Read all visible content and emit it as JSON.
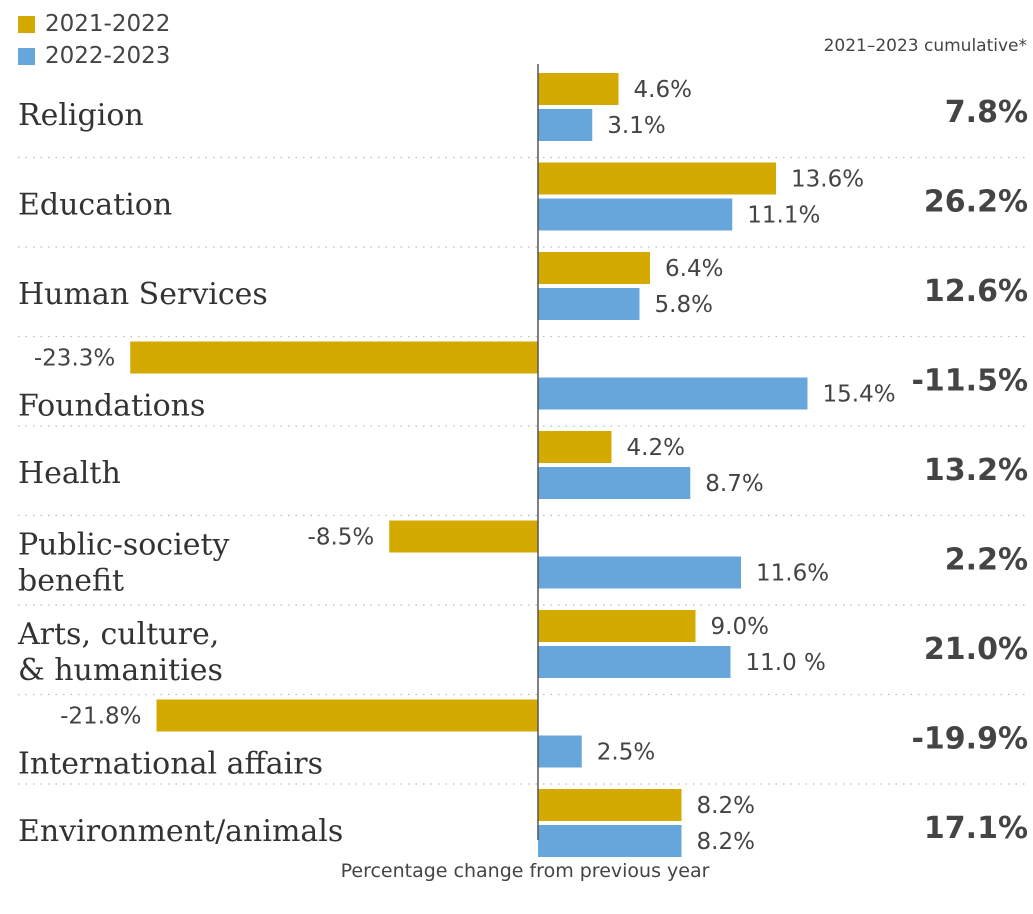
{
  "colors": {
    "series_2021_2022": "#d4a900",
    "series_2022_2023": "#66a6db",
    "text": "#444444",
    "label_text": "#333333",
    "axis": "#555555",
    "divider": "#bbbbbb"
  },
  "legend": [
    {
      "label": "2021-2022"
    },
    {
      "label": "2022-2023"
    }
  ],
  "cumulative_header": "2021–2023 cumulative*",
  "chart_data": {
    "type": "bar",
    "orientation": "horizontal",
    "xlabel": "Percentage change from previous year",
    "xlim": [
      -30,
      30
    ],
    "grid": false,
    "legend_placement": "top-left",
    "categories": [
      {
        "lines": [
          "Religion"
        ],
        "cumulative": "7.8%"
      },
      {
        "lines": [
          "Education"
        ],
        "cumulative": "26.2%"
      },
      {
        "lines": [
          "Human Services"
        ],
        "cumulative": "12.6%"
      },
      {
        "lines": [
          "Foundations"
        ],
        "cumulative": "-11.5%"
      },
      {
        "lines": [
          "Health"
        ],
        "cumulative": "13.2%"
      },
      {
        "lines": [
          "Public-society",
          "benefit"
        ],
        "cumulative": "2.2%"
      },
      {
        "lines": [
          "Arts, culture,",
          "& humanities"
        ],
        "cumulative": "21.0%"
      },
      {
        "lines": [
          "International affairs"
        ],
        "cumulative": "-19.9%"
      },
      {
        "lines": [
          "Environment/animals"
        ],
        "cumulative": "17.1%"
      }
    ],
    "series": [
      {
        "name": "2021-2022",
        "values": [
          4.6,
          13.6,
          6.4,
          -23.3,
          4.2,
          -8.5,
          9.0,
          -21.8,
          8.2
        ],
        "labels": [
          "4.6%",
          "13.6%",
          "6.4%",
          "-23.3%",
          "4.2%",
          "-8.5%",
          "9.0%",
          "-21.8%",
          "8.2%"
        ]
      },
      {
        "name": "2022-2023",
        "values": [
          3.1,
          11.1,
          5.8,
          15.4,
          8.7,
          11.6,
          11.0,
          2.5,
          8.2
        ],
        "labels": [
          "3.1%",
          "11.1%",
          "5.8%",
          "15.4%",
          "8.7%",
          "11.6%",
          "11.0 %",
          "2.5%",
          "8.2%"
        ]
      }
    ]
  }
}
